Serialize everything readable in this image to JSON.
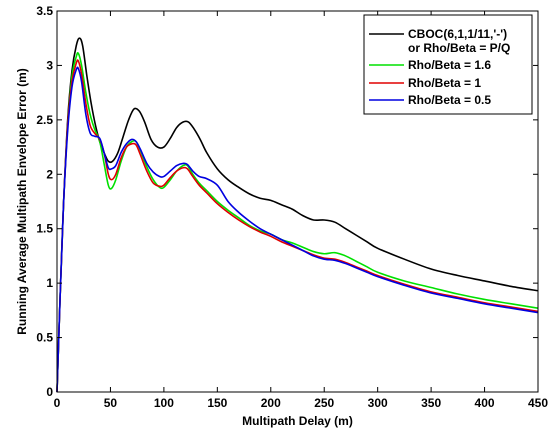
{
  "chart_data": {
    "type": "line",
    "title": "",
    "xlabel": "Multipath Delay (m)",
    "ylabel": "Running Average Multipath Envelope Error (m)",
    "xlim": [
      0,
      450
    ],
    "ylim": [
      0,
      3.5
    ],
    "xticks": [
      "0",
      "50",
      "100",
      "150",
      "200",
      "250",
      "300",
      "350",
      "400",
      "450"
    ],
    "yticks": [
      "0",
      "0.5",
      "1",
      "1.5",
      "2",
      "2.5",
      "3",
      "3.5"
    ],
    "grid": false,
    "legend_position": "top-right",
    "series": [
      {
        "name": "CBOC(6,1,1/11,'-')",
        "name_line2": "or Rho/Beta = P/Q",
        "color": "#000000",
        "points": [
          [
            0,
            0
          ],
          [
            3,
            0.9
          ],
          [
            6,
            1.7
          ],
          [
            10,
            2.5
          ],
          [
            14,
            2.95
          ],
          [
            18,
            3.18
          ],
          [
            21,
            3.25
          ],
          [
            24,
            3.18
          ],
          [
            28,
            2.9
          ],
          [
            32,
            2.65
          ],
          [
            36,
            2.45
          ],
          [
            40,
            2.3
          ],
          [
            44,
            2.2
          ],
          [
            48,
            2.12
          ],
          [
            52,
            2.12
          ],
          [
            57,
            2.2
          ],
          [
            62,
            2.35
          ],
          [
            67,
            2.5
          ],
          [
            72,
            2.6
          ],
          [
            77,
            2.58
          ],
          [
            82,
            2.48
          ],
          [
            88,
            2.32
          ],
          [
            94,
            2.25
          ],
          [
            100,
            2.25
          ],
          [
            106,
            2.33
          ],
          [
            112,
            2.43
          ],
          [
            118,
            2.48
          ],
          [
            123,
            2.48
          ],
          [
            128,
            2.42
          ],
          [
            134,
            2.32
          ],
          [
            140,
            2.2
          ],
          [
            150,
            2.05
          ],
          [
            160,
            1.95
          ],
          [
            170,
            1.88
          ],
          [
            180,
            1.82
          ],
          [
            190,
            1.78
          ],
          [
            200,
            1.76
          ],
          [
            210,
            1.72
          ],
          [
            220,
            1.68
          ],
          [
            230,
            1.62
          ],
          [
            240,
            1.58
          ],
          [
            250,
            1.58
          ],
          [
            260,
            1.56
          ],
          [
            270,
            1.5
          ],
          [
            280,
            1.44
          ],
          [
            290,
            1.38
          ],
          [
            300,
            1.32
          ],
          [
            325,
            1.22
          ],
          [
            350,
            1.13
          ],
          [
            375,
            1.07
          ],
          [
            400,
            1.02
          ],
          [
            425,
            0.97
          ],
          [
            450,
            0.93
          ]
        ]
      },
      {
        "name": "Rho/Beta = 1.6",
        "color": "#00e000",
        "points": [
          [
            0,
            0
          ],
          [
            3,
            0.9
          ],
          [
            6,
            1.7
          ],
          [
            10,
            2.45
          ],
          [
            14,
            2.9
          ],
          [
            18,
            3.08
          ],
          [
            20,
            3.11
          ],
          [
            23,
            3.0
          ],
          [
            27,
            2.75
          ],
          [
            31,
            2.55
          ],
          [
            35,
            2.42
          ],
          [
            40,
            2.3
          ],
          [
            44,
            2.1
          ],
          [
            48,
            1.9
          ],
          [
            51,
            1.87
          ],
          [
            55,
            1.95
          ],
          [
            60,
            2.12
          ],
          [
            65,
            2.25
          ],
          [
            70,
            2.3
          ],
          [
            74,
            2.3
          ],
          [
            78,
            2.22
          ],
          [
            84,
            2.07
          ],
          [
            90,
            1.95
          ],
          [
            96,
            1.88
          ],
          [
            100,
            1.88
          ],
          [
            106,
            1.95
          ],
          [
            112,
            2.03
          ],
          [
            118,
            2.08
          ],
          [
            122,
            2.08
          ],
          [
            127,
            2.0
          ],
          [
            133,
            1.92
          ],
          [
            140,
            1.85
          ],
          [
            150,
            1.75
          ],
          [
            160,
            1.67
          ],
          [
            170,
            1.6
          ],
          [
            180,
            1.53
          ],
          [
            190,
            1.48
          ],
          [
            200,
            1.45
          ],
          [
            210,
            1.4
          ],
          [
            220,
            1.37
          ],
          [
            230,
            1.33
          ],
          [
            240,
            1.29
          ],
          [
            250,
            1.27
          ],
          [
            260,
            1.28
          ],
          [
            270,
            1.25
          ],
          [
            280,
            1.2
          ],
          [
            290,
            1.15
          ],
          [
            300,
            1.1
          ],
          [
            325,
            1.02
          ],
          [
            350,
            0.96
          ],
          [
            375,
            0.9
          ],
          [
            400,
            0.85
          ],
          [
            425,
            0.81
          ],
          [
            450,
            0.77
          ]
        ]
      },
      {
        "name": "Rho/Beta = 1",
        "color": "#e00000",
        "points": [
          [
            0,
            0
          ],
          [
            3,
            0.9
          ],
          [
            6,
            1.7
          ],
          [
            10,
            2.45
          ],
          [
            14,
            2.85
          ],
          [
            18,
            3.02
          ],
          [
            20,
            3.04
          ],
          [
            23,
            2.92
          ],
          [
            27,
            2.65
          ],
          [
            31,
            2.45
          ],
          [
            35,
            2.38
          ],
          [
            40,
            2.32
          ],
          [
            44,
            2.2
          ],
          [
            48,
            2.0
          ],
          [
            51,
            1.95
          ],
          [
            55,
            2.0
          ],
          [
            60,
            2.15
          ],
          [
            65,
            2.25
          ],
          [
            70,
            2.28
          ],
          [
            74,
            2.27
          ],
          [
            78,
            2.18
          ],
          [
            84,
            2.03
          ],
          [
            90,
            1.92
          ],
          [
            96,
            1.89
          ],
          [
            100,
            1.9
          ],
          [
            106,
            1.97
          ],
          [
            112,
            2.03
          ],
          [
            118,
            2.06
          ],
          [
            122,
            2.05
          ],
          [
            127,
            1.98
          ],
          [
            133,
            1.9
          ],
          [
            140,
            1.83
          ],
          [
            150,
            1.73
          ],
          [
            160,
            1.65
          ],
          [
            170,
            1.58
          ],
          [
            180,
            1.52
          ],
          [
            190,
            1.47
          ],
          [
            200,
            1.43
          ],
          [
            210,
            1.38
          ],
          [
            220,
            1.34
          ],
          [
            230,
            1.3
          ],
          [
            240,
            1.26
          ],
          [
            250,
            1.23
          ],
          [
            260,
            1.22
          ],
          [
            270,
            1.19
          ],
          [
            280,
            1.15
          ],
          [
            290,
            1.11
          ],
          [
            300,
            1.07
          ],
          [
            325,
            0.99
          ],
          [
            350,
            0.92
          ],
          [
            375,
            0.87
          ],
          [
            400,
            0.82
          ],
          [
            425,
            0.78
          ],
          [
            450,
            0.74
          ]
        ]
      },
      {
        "name": "Rho/Beta = 0.5",
        "color": "#0000e0",
        "points": [
          [
            0,
            0
          ],
          [
            3,
            0.9
          ],
          [
            6,
            1.7
          ],
          [
            10,
            2.4
          ],
          [
            14,
            2.8
          ],
          [
            18,
            2.96
          ],
          [
            20,
            2.97
          ],
          [
            23,
            2.85
          ],
          [
            27,
            2.55
          ],
          [
            31,
            2.38
          ],
          [
            35,
            2.35
          ],
          [
            40,
            2.33
          ],
          [
            44,
            2.2
          ],
          [
            48,
            2.06
          ],
          [
            51,
            2.05
          ],
          [
            55,
            2.08
          ],
          [
            60,
            2.2
          ],
          [
            65,
            2.28
          ],
          [
            70,
            2.32
          ],
          [
            74,
            2.3
          ],
          [
            78,
            2.23
          ],
          [
            84,
            2.1
          ],
          [
            90,
            2.02
          ],
          [
            96,
            1.98
          ],
          [
            100,
            1.98
          ],
          [
            106,
            2.03
          ],
          [
            112,
            2.08
          ],
          [
            118,
            2.1
          ],
          [
            122,
            2.09
          ],
          [
            127,
            2.03
          ],
          [
            133,
            1.98
          ],
          [
            140,
            1.96
          ],
          [
            150,
            1.9
          ],
          [
            160,
            1.75
          ],
          [
            170,
            1.65
          ],
          [
            180,
            1.57
          ],
          [
            190,
            1.5
          ],
          [
            200,
            1.45
          ],
          [
            210,
            1.4
          ],
          [
            220,
            1.35
          ],
          [
            230,
            1.3
          ],
          [
            240,
            1.25
          ],
          [
            250,
            1.22
          ],
          [
            260,
            1.21
          ],
          [
            270,
            1.18
          ],
          [
            280,
            1.14
          ],
          [
            290,
            1.1
          ],
          [
            300,
            1.06
          ],
          [
            325,
            0.98
          ],
          [
            350,
            0.91
          ],
          [
            375,
            0.86
          ],
          [
            400,
            0.81
          ],
          [
            425,
            0.77
          ],
          [
            450,
            0.73
          ]
        ]
      }
    ]
  }
}
